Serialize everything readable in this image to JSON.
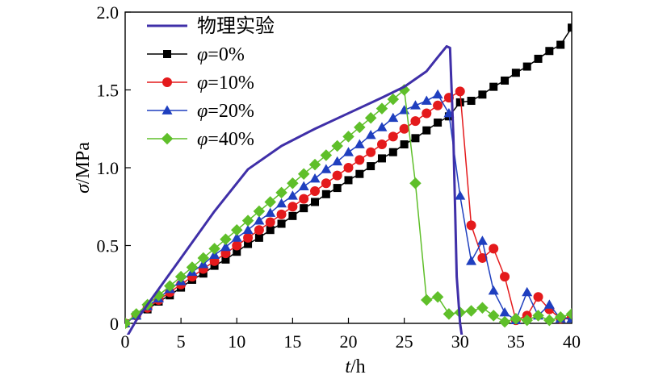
{
  "chart_data": {
    "type": "line",
    "xlabel_italic": "t",
    "xlabel_unit": "/h",
    "ylabel_italic": "σ",
    "ylabel_unit": "/MPa",
    "xlim": [
      0,
      40
    ],
    "ylim": [
      0,
      2.0
    ],
    "xticks": [
      0,
      5,
      10,
      15,
      20,
      25,
      30,
      35,
      40
    ],
    "xtick_labels": [
      "0",
      "5",
      "10",
      "15",
      "20",
      "25",
      "30",
      "35",
      "40"
    ],
    "yticks": [
      0,
      0.5,
      1.0,
      1.5,
      2.0
    ],
    "ytick_labels": [
      "0",
      "0.5",
      "1.0",
      "1.5",
      "2.0"
    ],
    "grid": false,
    "legend_position": "top-left",
    "series": [
      {
        "name": "物理实验",
        "legend_italic": "",
        "legend_rest": "物理实验",
        "color": "#3f2fa8",
        "marker": "none",
        "x": [
          0.2,
          1,
          3,
          5,
          8,
          11,
          14,
          17,
          20,
          23,
          25,
          27,
          28,
          28.8,
          29.1,
          29.4,
          29.7,
          30.0,
          30.2
        ],
        "y": [
          -0.08,
          0.02,
          0.22,
          0.42,
          0.72,
          0.99,
          1.14,
          1.25,
          1.35,
          1.45,
          1.52,
          1.62,
          1.71,
          1.78,
          1.77,
          1.2,
          0.3,
          0.0,
          -0.1
        ]
      },
      {
        "name": "φ=0%",
        "legend_italic": "φ",
        "legend_rest": "=0%",
        "color": "#000000",
        "marker": "square",
        "x": [
          0,
          1,
          2,
          3,
          4,
          5,
          6,
          7,
          8,
          9,
          10,
          11,
          12,
          13,
          14,
          15,
          16,
          17,
          18,
          19,
          20,
          21,
          22,
          23,
          24,
          25,
          26,
          27,
          28,
          29,
          30,
          31,
          32,
          33,
          34,
          35,
          36,
          37,
          38,
          39,
          40
        ],
        "y": [
          0,
          0.05,
          0.09,
          0.14,
          0.18,
          0.23,
          0.28,
          0.32,
          0.37,
          0.41,
          0.46,
          0.51,
          0.55,
          0.6,
          0.64,
          0.69,
          0.74,
          0.78,
          0.83,
          0.87,
          0.92,
          0.96,
          1.01,
          1.06,
          1.1,
          1.15,
          1.19,
          1.24,
          1.29,
          1.33,
          1.42,
          1.43,
          1.47,
          1.52,
          1.56,
          1.61,
          1.65,
          1.7,
          1.75,
          1.79,
          1.9
        ]
      },
      {
        "name": "φ=10%",
        "legend_italic": "φ",
        "legend_rest": "=10%",
        "color": "#e41a1c",
        "marker": "circle",
        "x": [
          0,
          1,
          2,
          3,
          4,
          5,
          6,
          7,
          8,
          9,
          10,
          11,
          12,
          13,
          14,
          15,
          16,
          17,
          18,
          19,
          20,
          21,
          22,
          23,
          24,
          25,
          26,
          27,
          28,
          29,
          30,
          31,
          32,
          33,
          34,
          35,
          36,
          37,
          38,
          39,
          40
        ],
        "y": [
          0,
          0.05,
          0.1,
          0.15,
          0.2,
          0.25,
          0.3,
          0.35,
          0.4,
          0.45,
          0.5,
          0.55,
          0.6,
          0.65,
          0.7,
          0.75,
          0.8,
          0.85,
          0.9,
          0.95,
          1.0,
          1.05,
          1.1,
          1.15,
          1.2,
          1.25,
          1.3,
          1.35,
          1.4,
          1.45,
          1.49,
          0.63,
          0.42,
          0.48,
          0.3,
          0.02,
          0.05,
          0.17,
          0.09,
          0.03,
          0.04
        ]
      },
      {
        "name": "φ=20%",
        "legend_italic": "φ",
        "legend_rest": "=20%",
        "color": "#1f3fbf",
        "marker": "triangle",
        "x": [
          0,
          1,
          2,
          3,
          4,
          5,
          6,
          7,
          8,
          9,
          10,
          11,
          12,
          13,
          14,
          15,
          16,
          17,
          18,
          19,
          20,
          21,
          22,
          23,
          24,
          25,
          26,
          27,
          28,
          29,
          30,
          31,
          32,
          33,
          34,
          35,
          36,
          37,
          38,
          39,
          40
        ],
        "y": [
          0,
          0.05,
          0.11,
          0.16,
          0.22,
          0.27,
          0.33,
          0.38,
          0.44,
          0.49,
          0.55,
          0.6,
          0.66,
          0.71,
          0.77,
          0.82,
          0.88,
          0.93,
          0.99,
          1.04,
          1.1,
          1.15,
          1.21,
          1.26,
          1.32,
          1.37,
          1.4,
          1.43,
          1.47,
          1.35,
          0.82,
          0.4,
          0.53,
          0.21,
          0.07,
          0.02,
          0.2,
          0.05,
          0.12,
          0.03,
          0.03
        ]
      },
      {
        "name": "φ=40%",
        "legend_italic": "φ",
        "legend_rest": "=40%",
        "color": "#5fbf2a",
        "marker": "diamond",
        "x": [
          0,
          1,
          2,
          3,
          4,
          5,
          6,
          7,
          8,
          9,
          10,
          11,
          12,
          13,
          14,
          15,
          16,
          17,
          18,
          19,
          20,
          21,
          22,
          23,
          24,
          25,
          26,
          27,
          28,
          29,
          30,
          31,
          32,
          33,
          34,
          35,
          36,
          37,
          38,
          39,
          40
        ],
        "y": [
          0,
          0.06,
          0.12,
          0.18,
          0.24,
          0.3,
          0.36,
          0.42,
          0.48,
          0.54,
          0.6,
          0.66,
          0.72,
          0.78,
          0.84,
          0.9,
          0.96,
          1.02,
          1.08,
          1.14,
          1.2,
          1.26,
          1.32,
          1.38,
          1.44,
          1.5,
          0.9,
          0.15,
          0.17,
          0.06,
          0.07,
          0.08,
          0.1,
          0.05,
          0.01,
          0.03,
          0.02,
          0.05,
          0.02,
          0.04,
          0.06
        ]
      }
    ]
  }
}
